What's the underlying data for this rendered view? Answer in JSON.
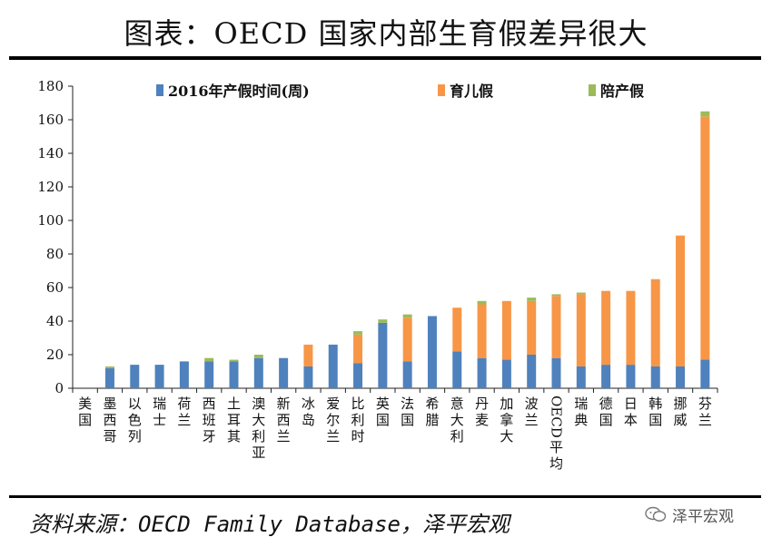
{
  "title": "图表：OECD 国家内部生育假差异很大",
  "source": "资料来源：OECD Family Database，泽平宏观",
  "brand": "泽平宏观",
  "colors": {
    "s1": "#4f81bd",
    "s2": "#f79646",
    "s3": "#9bbb59"
  },
  "chart_data": {
    "type": "bar",
    "stacked": true,
    "ylim": [
      0,
      180
    ],
    "yticks": [
      "0",
      "20",
      "40",
      "60",
      "80",
      "100",
      "120",
      "140",
      "160",
      "180"
    ],
    "legend_position": "top",
    "categories": [
      "美国",
      "墨西哥",
      "以色列",
      "瑞士",
      "荷兰",
      "西班牙",
      "土耳其",
      "澳大利亚",
      "新西兰",
      "冰岛",
      "爱尔兰",
      "比利时",
      "英国",
      "法国",
      "希腊",
      "意大利",
      "丹麦",
      "加拿大",
      "波兰",
      "OECD平均",
      "瑞典",
      "德国",
      "日本",
      "韩国",
      "挪威",
      "芬兰"
    ],
    "series": [
      {
        "name": "2016年产假时间(周)",
        "values": [
          0,
          12,
          14,
          14,
          16,
          16,
          16,
          18,
          18,
          13,
          26,
          15,
          39,
          16,
          43,
          22,
          18,
          17,
          20,
          18,
          13,
          14,
          14,
          13,
          13,
          17
        ]
      },
      {
        "name": "育儿假",
        "values": [
          0,
          0,
          0,
          0,
          0,
          0,
          0,
          0,
          0,
          13,
          0,
          17,
          0,
          26,
          0,
          26,
          32,
          35,
          32,
          37,
          43,
          44,
          44,
          52,
          78,
          145
        ]
      },
      {
        "name": "陪产假",
        "values": [
          0,
          1,
          0,
          0,
          0,
          2,
          1,
          2,
          0,
          0,
          0,
          2,
          2,
          2,
          0,
          0,
          2,
          0,
          2,
          1,
          1,
          0,
          0,
          0,
          0,
          3
        ]
      }
    ]
  }
}
